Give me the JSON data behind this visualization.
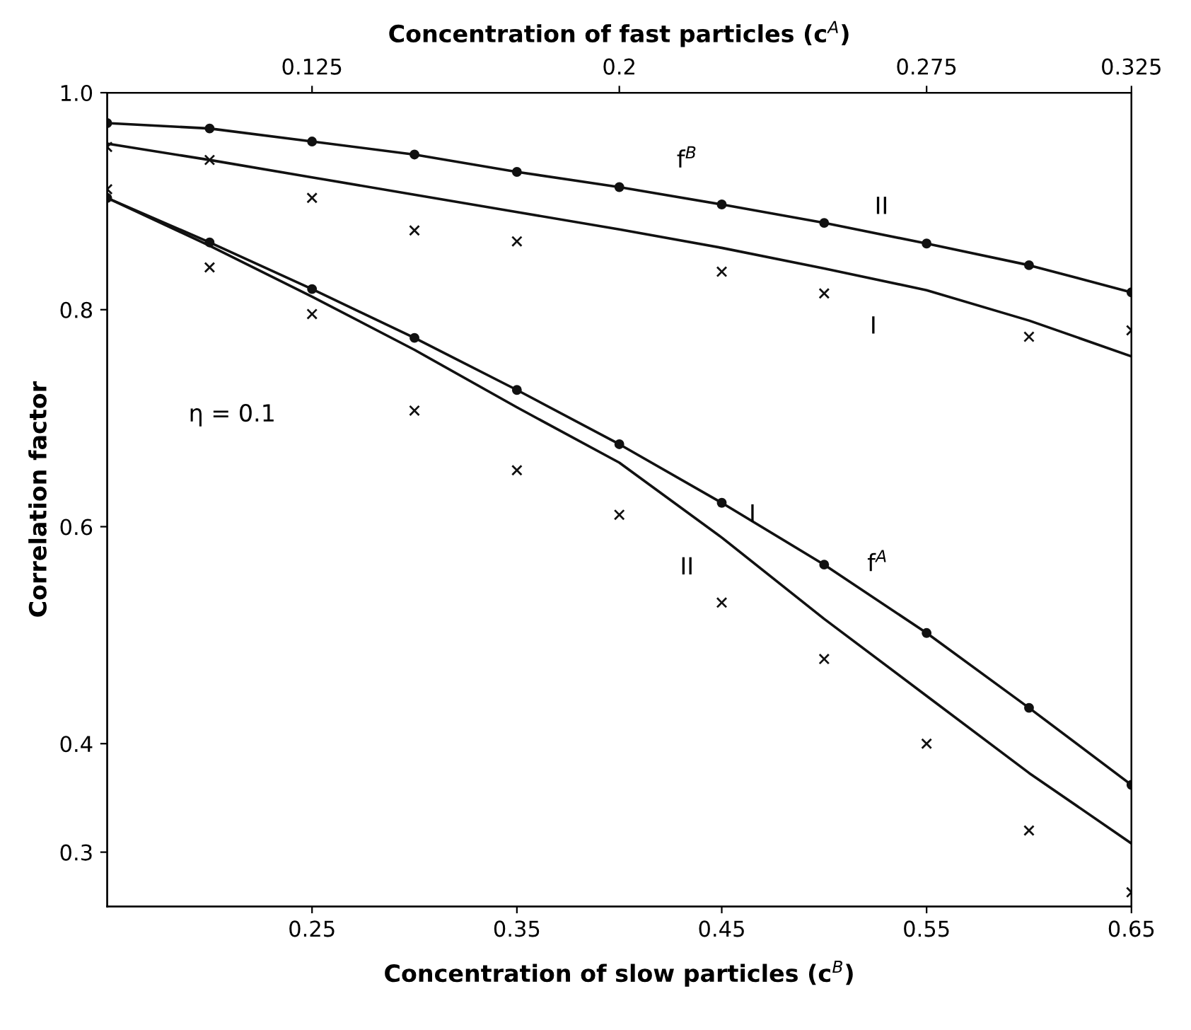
{
  "chart_data": {
    "type": "line",
    "xlabel": "Concentration of slow particles (c$^{B}$)",
    "x2label": "Concentration of fast particles (c$^{A}$)",
    "ylabel": "Correlation factor",
    "x": [
      0.15,
      0.2,
      0.25,
      0.3,
      0.35,
      0.4,
      0.45,
      0.5,
      0.55,
      0.6,
      0.65
    ],
    "xlim": [
      0.15,
      0.65
    ],
    "xticks": [
      0.25,
      0.35,
      0.45,
      0.55,
      0.65
    ],
    "x2lim": [
      0.075,
      0.325
    ],
    "x2ticks": [
      0.125,
      0.2,
      0.275,
      0.325
    ],
    "ylim": [
      0.25,
      1.0
    ],
    "yticks": [
      {
        "value": 1.0,
        "label": "1.0"
      },
      0.8,
      0.6,
      0.4,
      0.3
    ],
    "grid": false,
    "legend": false,
    "series": [
      {
        "color": "#111111",
        "marker": "circle",
        "values": [
          0.972,
          0.967,
          0.955,
          0.943,
          0.927,
          0.913,
          0.897,
          0.88,
          0.861,
          0.841,
          0.816
        ]
      },
      {
        "color": "#111111",
        "marker": "none",
        "values": [
          0.953,
          0.938,
          0.922,
          0.906,
          0.89,
          0.874,
          0.857,
          0.838,
          0.818,
          0.79,
          0.757
        ]
      },
      {
        "type": "scatter",
        "color": "#111111",
        "marker": "cross",
        "values": [
          0.95,
          0.938,
          0.903,
          0.873,
          0.863,
          null,
          0.835,
          0.815,
          null,
          0.775,
          0.781
        ]
      },
      {
        "color": "#111111",
        "marker": "circle",
        "values": [
          0.903,
          0.862,
          0.819,
          0.774,
          0.726,
          0.676,
          0.622,
          0.565,
          0.502,
          0.433,
          0.362
        ]
      },
      {
        "color": "#111111",
        "marker": "none",
        "values": [
          0.903,
          0.859,
          0.812,
          0.763,
          0.71,
          0.659,
          0.59,
          0.515,
          0.444,
          0.373,
          0.308
        ]
      },
      {
        "type": "scatter",
        "color": "#111111",
        "marker": "cross",
        "values": [
          0.911,
          0.839,
          0.796,
          0.707,
          0.652,
          0.611,
          0.53,
          0.478,
          0.4,
          0.32,
          0.263
        ]
      }
    ],
    "annotations": [
      "f$^{B}$",
      "II",
      "I",
      "η = 0.1",
      "I",
      "II",
      "f$^{A}$"
    ]
  }
}
